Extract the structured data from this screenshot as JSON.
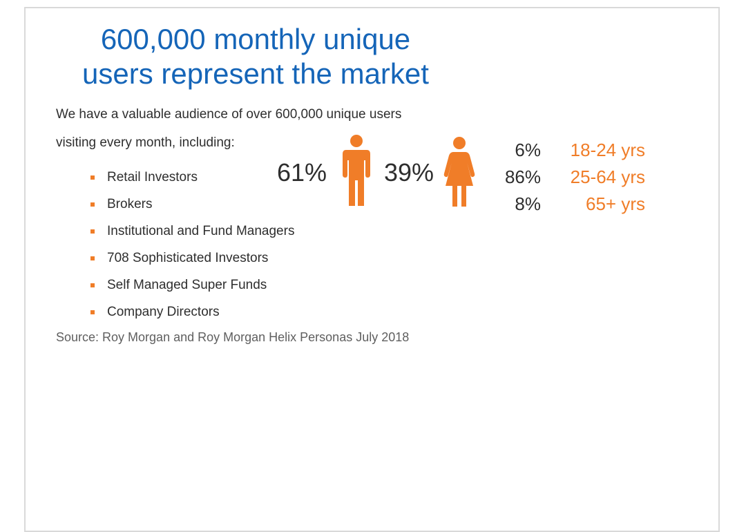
{
  "title": {
    "line1": "600,000 monthly unique",
    "line2": "users represent the market"
  },
  "intro": {
    "line1": "We have a valuable audience of over 600,000 unique users",
    "line2": "visiting every month, including:"
  },
  "audience_list": [
    "Retail Investors",
    "Brokers",
    "Institutional and Fund Managers",
    "708 Sophisticated Investors",
    "Self Managed Super Funds",
    "Company Directors"
  ],
  "source": "Source: Roy Morgan and Roy Morgan Helix Personas July 2018",
  "gender": {
    "male_percent": "61%",
    "female_percent": "39%",
    "male_icon": "male-person-icon",
    "female_icon": "female-person-icon"
  },
  "age_groups": [
    {
      "percent": "6%",
      "label": "18-24 yrs"
    },
    {
      "percent": "86%",
      "label": "25-64 yrs"
    },
    {
      "percent": "8%",
      "label": "65+ yrs"
    }
  ],
  "colors": {
    "title_blue": "#1565b8",
    "accent_orange": "#f07d28",
    "text_dark": "#2e2e2e",
    "border_gray": "#d9d9d9"
  }
}
